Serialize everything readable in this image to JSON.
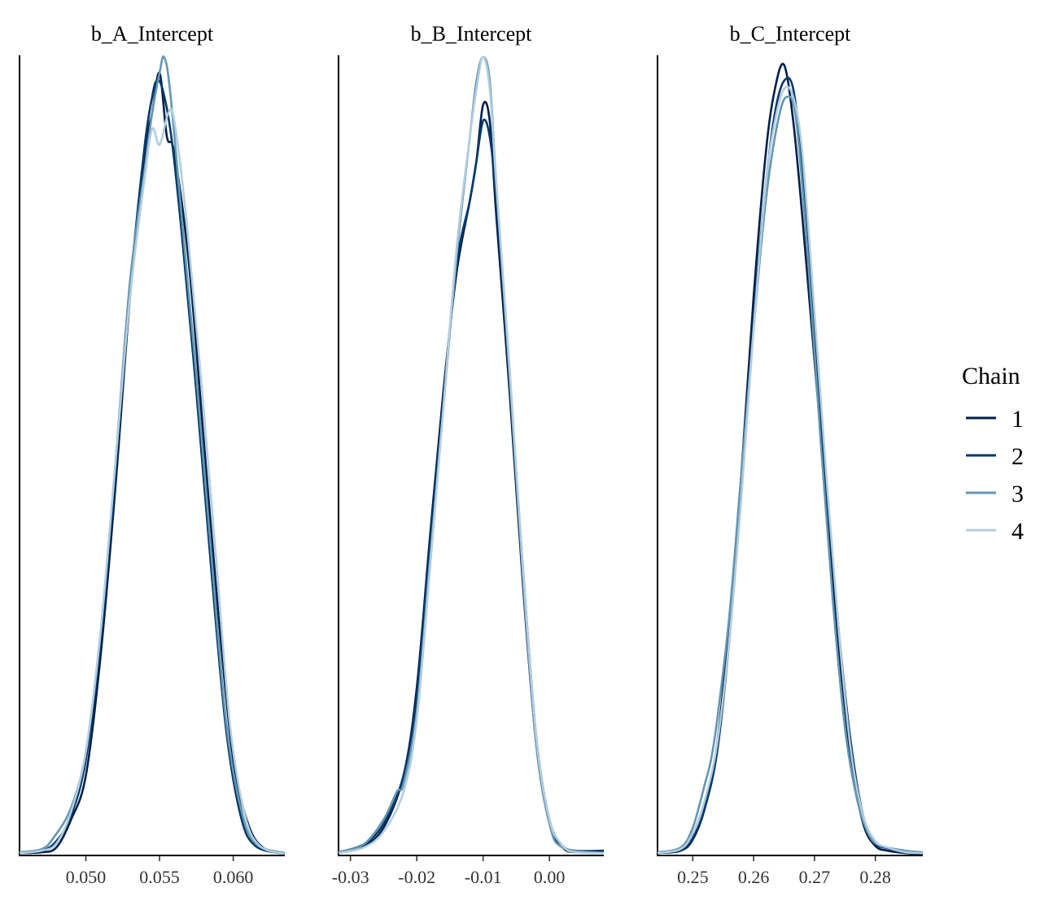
{
  "chart_data": {
    "type": "line",
    "legend": {
      "title": "Chain",
      "placement": "right",
      "entries": [
        {
          "label": "1",
          "color": "#011f4b"
        },
        {
          "label": "2",
          "color": "#03396c"
        },
        {
          "label": "3",
          "color": "#6497b1"
        },
        {
          "label": "4",
          "color": "#b3cde0"
        }
      ]
    },
    "panels": [
      {
        "title": "b_A_Intercept",
        "xlim": [
          0.0455,
          0.0635
        ],
        "ticks": [
          0.05,
          0.055,
          0.06
        ],
        "tick_labels": [
          "0.050",
          "0.055",
          "0.060"
        ],
        "ylim": [
          0,
          1.0
        ],
        "series": [
          {
            "name": "1",
            "x": [
              0.0455,
              0.047,
              0.048,
              0.049,
              0.05,
              0.051,
              0.052,
              0.053,
              0.054,
              0.0545,
              0.055,
              0.0555,
              0.056,
              0.057,
              0.058,
              0.059,
              0.06,
              0.061,
              0.062,
              0.0635
            ],
            "y": [
              0.003,
              0.004,
              0.01,
              0.045,
              0.1,
              0.25,
              0.46,
              0.7,
              0.88,
              0.93,
              0.98,
              0.9,
              0.88,
              0.74,
              0.52,
              0.3,
              0.12,
              0.04,
              0.01,
              0.002
            ]
          },
          {
            "name": "2",
            "x": [
              0.0455,
              0.047,
              0.048,
              0.049,
              0.05,
              0.051,
              0.052,
              0.053,
              0.054,
              0.0545,
              0.0548,
              0.0552,
              0.0558,
              0.0565,
              0.0575,
              0.0585,
              0.0595,
              0.0605,
              0.0615,
              0.0635
            ],
            "y": [
              0.004,
              0.006,
              0.018,
              0.05,
              0.12,
              0.27,
              0.48,
              0.71,
              0.89,
              0.95,
              0.97,
              0.96,
              0.9,
              0.78,
              0.58,
              0.36,
              0.16,
              0.05,
              0.012,
              0.002
            ]
          },
          {
            "name": "3",
            "x": [
              0.0455,
              0.047,
              0.0478,
              0.049,
              0.05,
              0.051,
              0.052,
              0.053,
              0.054,
              0.0545,
              0.055,
              0.0553,
              0.0557,
              0.0565,
              0.0575,
              0.0585,
              0.0595,
              0.0605,
              0.0615,
              0.0635
            ],
            "y": [
              0.004,
              0.008,
              0.022,
              0.06,
              0.13,
              0.28,
              0.49,
              0.72,
              0.86,
              0.93,
              0.98,
              1.0,
              0.96,
              0.8,
              0.6,
              0.38,
              0.17,
              0.06,
              0.015,
              0.003
            ]
          },
          {
            "name": "4",
            "x": [
              0.0455,
              0.047,
              0.048,
              0.049,
              0.05,
              0.051,
              0.052,
              0.053,
              0.054,
              0.0545,
              0.055,
              0.0556,
              0.056,
              0.0568,
              0.0578,
              0.0588,
              0.0598,
              0.0608,
              0.0618,
              0.0635
            ],
            "y": [
              0.003,
              0.006,
              0.015,
              0.055,
              0.13,
              0.28,
              0.49,
              0.7,
              0.85,
              0.91,
              0.89,
              0.93,
              0.92,
              0.8,
              0.6,
              0.38,
              0.16,
              0.05,
              0.012,
              0.002
            ]
          }
        ]
      },
      {
        "title": "b_B_Intercept",
        "xlim": [
          -0.0318,
          0.0082
        ],
        "ticks": [
          -0.03,
          -0.02,
          -0.01,
          0.0
        ],
        "tick_labels": [
          "-0.03",
          "-0.02",
          "-0.01",
          "0.00"
        ],
        "ylim": [
          0,
          1.0
        ],
        "series": [
          {
            "name": "1",
            "x": [
              -0.0318,
              -0.028,
              -0.025,
              -0.022,
              -0.02,
              -0.018,
              -0.016,
              -0.014,
              -0.012,
              -0.011,
              -0.01,
              -0.009,
              -0.008,
              -0.006,
              -0.004,
              -0.002,
              0.0,
              0.002,
              0.004,
              0.0082
            ],
            "y": [
              0.004,
              0.012,
              0.035,
              0.1,
              0.21,
              0.4,
              0.58,
              0.73,
              0.82,
              0.87,
              0.94,
              0.92,
              0.8,
              0.58,
              0.34,
              0.14,
              0.04,
              0.01,
              0.004,
              0.004
            ]
          },
          {
            "name": "2",
            "x": [
              -0.0318,
              -0.028,
              -0.025,
              -0.022,
              -0.02,
              -0.018,
              -0.016,
              -0.014,
              -0.012,
              -0.011,
              -0.01,
              -0.009,
              -0.008,
              -0.006,
              -0.004,
              -0.002,
              0.0,
              0.002,
              0.004,
              0.0082
            ],
            "y": [
              0.004,
              0.014,
              0.04,
              0.1,
              0.2,
              0.39,
              0.57,
              0.74,
              0.82,
              0.87,
              0.92,
              0.9,
              0.82,
              0.6,
              0.36,
              0.15,
              0.045,
              0.012,
              0.006,
              0.006
            ]
          },
          {
            "name": "3",
            "x": [
              -0.0318,
              -0.028,
              -0.025,
              -0.023,
              -0.022,
              -0.02,
              -0.018,
              -0.016,
              -0.014,
              -0.012,
              -0.011,
              -0.01,
              -0.009,
              -0.008,
              -0.006,
              -0.004,
              -0.002,
              0.0,
              0.002,
              0.0082
            ],
            "y": [
              0.004,
              0.014,
              0.045,
              0.08,
              0.09,
              0.18,
              0.37,
              0.56,
              0.75,
              0.9,
              0.97,
              1.0,
              0.97,
              0.84,
              0.6,
              0.35,
              0.14,
              0.04,
              0.01,
              0.003
            ]
          },
          {
            "name": "4",
            "x": [
              -0.0318,
              -0.028,
              -0.025,
              -0.022,
              -0.02,
              -0.018,
              -0.016,
              -0.014,
              -0.012,
              -0.011,
              -0.01,
              -0.009,
              -0.008,
              -0.006,
              -0.004,
              -0.002,
              0.0,
              0.002,
              0.004,
              0.0082
            ],
            "y": [
              0.003,
              0.01,
              0.03,
              0.08,
              0.17,
              0.36,
              0.56,
              0.76,
              0.9,
              0.96,
              1.0,
              0.96,
              0.84,
              0.61,
              0.36,
              0.15,
              0.045,
              0.012,
              0.004,
              0.003
            ]
          }
        ]
      },
      {
        "title": "b_C_Intercept",
        "xlim": [
          0.2442,
          0.2878
        ],
        "ticks": [
          0.25,
          0.26,
          0.27,
          0.28
        ],
        "tick_labels": [
          "0.25",
          "0.26",
          "0.27",
          "0.28"
        ],
        "ylim": [
          0,
          1.0
        ],
        "series": [
          {
            "name": "1",
            "x": [
              0.2442,
              0.248,
              0.25,
              0.252,
              0.254,
              0.256,
              0.258,
              0.26,
              0.262,
              0.2635,
              0.265,
              0.2665,
              0.268,
              0.27,
              0.272,
              0.274,
              0.276,
              0.278,
              0.28,
              0.282,
              0.285,
              0.2878
            ],
            "y": [
              0.003,
              0.006,
              0.02,
              0.06,
              0.14,
              0.29,
              0.48,
              0.7,
              0.88,
              0.96,
              0.99,
              0.92,
              0.8,
              0.62,
              0.44,
              0.26,
              0.12,
              0.04,
              0.012,
              0.006,
              0.003,
              0.002
            ]
          },
          {
            "name": "2",
            "x": [
              0.2442,
              0.248,
              0.25,
              0.252,
              0.254,
              0.256,
              0.258,
              0.26,
              0.262,
              0.2635,
              0.265,
              0.2665,
              0.268,
              0.27,
              0.272,
              0.274,
              0.276,
              0.278,
              0.28,
              0.282,
              0.285,
              0.2878
            ],
            "y": [
              0.003,
              0.007,
              0.022,
              0.06,
              0.13,
              0.27,
              0.46,
              0.67,
              0.84,
              0.93,
              0.97,
              0.96,
              0.86,
              0.66,
              0.46,
              0.28,
              0.14,
              0.05,
              0.016,
              0.009,
              0.004,
              0.003
            ]
          },
          {
            "name": "3",
            "x": [
              0.2442,
              0.248,
              0.25,
              0.252,
              0.253,
              0.254,
              0.256,
              0.258,
              0.26,
              0.262,
              0.264,
              0.2655,
              0.267,
              0.269,
              0.271,
              0.273,
              0.275,
              0.277,
              0.279,
              0.281,
              0.285,
              0.2878
            ],
            "y": [
              0.004,
              0.01,
              0.035,
              0.09,
              0.12,
              0.17,
              0.3,
              0.48,
              0.66,
              0.82,
              0.92,
              0.95,
              0.92,
              0.74,
              0.52,
              0.32,
              0.16,
              0.07,
              0.025,
              0.012,
              0.006,
              0.004
            ]
          },
          {
            "name": "4",
            "x": [
              0.2442,
              0.248,
              0.25,
              0.252,
              0.254,
              0.256,
              0.258,
              0.26,
              0.262,
              0.2635,
              0.265,
              0.2665,
              0.268,
              0.27,
              0.272,
              0.274,
              0.276,
              0.278,
              0.28,
              0.282,
              0.285,
              0.2878
            ],
            "y": [
              0.003,
              0.008,
              0.028,
              0.07,
              0.14,
              0.27,
              0.45,
              0.66,
              0.84,
              0.92,
              0.96,
              0.95,
              0.88,
              0.68,
              0.47,
              0.28,
              0.13,
              0.05,
              0.018,
              0.01,
              0.004,
              0.003
            ]
          }
        ]
      }
    ]
  }
}
